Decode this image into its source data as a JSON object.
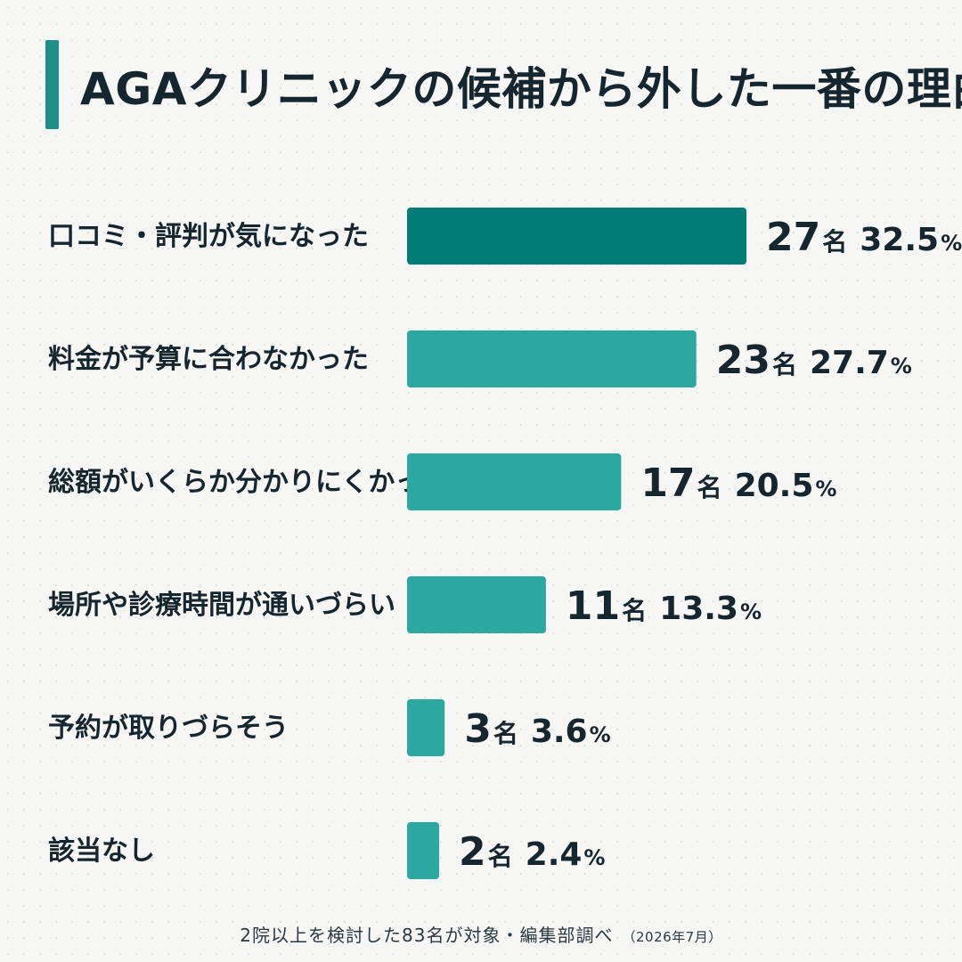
{
  "title": "AGAクリニックの候補から外した一番の理由",
  "footnote": {
    "main": "2院以上を検討した83名が対象・編集部調べ",
    "date": "（2026年7月）"
  },
  "colors": {
    "accent": "#1d8f87",
    "top_bar": "#017d78",
    "bar": "#2ba8a0",
    "text": "#16262e"
  },
  "chart_data": {
    "type": "bar",
    "orientation": "horizontal",
    "title": "AGAクリニックの候補から外した一番の理由",
    "categories": [
      "口コミ・評判が気になった",
      "料金が予算に合わなかった",
      "総額がいくらか分かりにくかった",
      "場所や診療時間が通いづらい",
      "予約が取りづらそう",
      "該当なし"
    ],
    "counts": [
      27,
      23,
      17,
      11,
      3,
      2
    ],
    "count_unit": "名",
    "values": [
      32.5,
      27.7,
      20.5,
      13.3,
      3.6,
      2.4
    ],
    "value_unit": "%",
    "highlight_index": 0,
    "legend": "none",
    "grid": false
  }
}
